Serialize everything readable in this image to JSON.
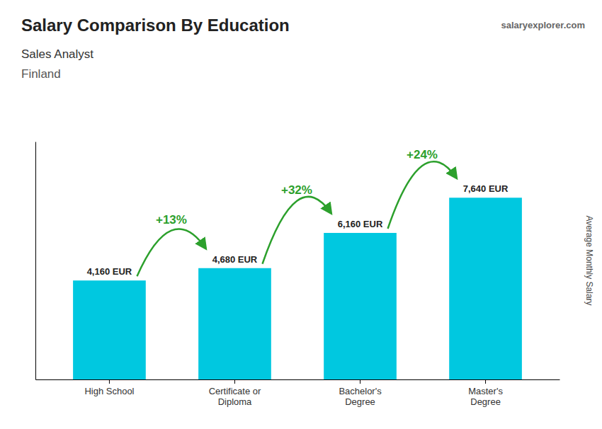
{
  "chart_data": {
    "type": "bar",
    "title": "Salary Comparison By Education",
    "subtitle": [
      "Sales Analyst",
      "Finland"
    ],
    "source": "salaryexplorer.com",
    "y_label": "Average Monthly Salary",
    "categories": [
      "High School",
      "Certificate or\nDiploma",
      "Bachelor's\nDegree",
      "Master's\nDegree"
    ],
    "values": [
      4160,
      4680,
      6160,
      7640
    ],
    "value_labels": [
      "4,160 EUR",
      "4,680 EUR",
      "6,160 EUR",
      "7,640 EUR"
    ],
    "data_labels": true,
    "annotations": [
      "+13%",
      "+32%",
      "+24%"
    ],
    "color": "#00c8e0",
    "ylim": [
      0,
      10000
    ],
    "tick_labels": "x"
  }
}
